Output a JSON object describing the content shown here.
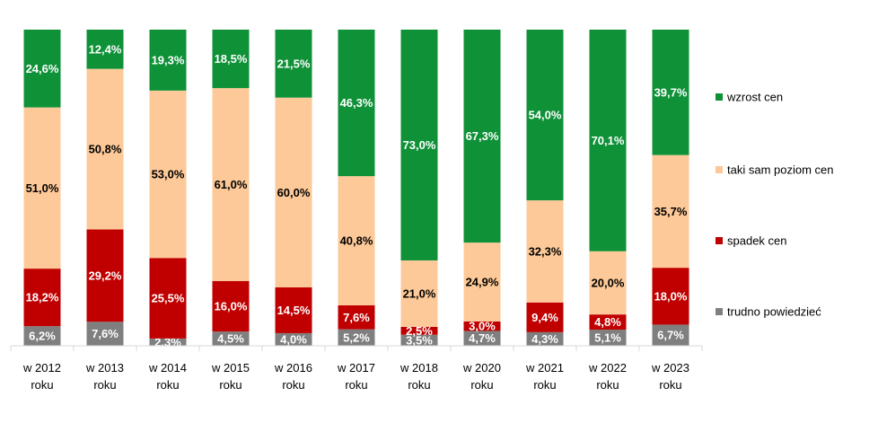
{
  "chart_data": {
    "type": "bar",
    "stacked": true,
    "normalized_percent": true,
    "categories": [
      [
        "w 2012",
        "roku"
      ],
      [
        "w 2013",
        "roku"
      ],
      [
        "w 2014",
        "roku"
      ],
      [
        "w 2015",
        "roku"
      ],
      [
        "w 2016",
        "roku"
      ],
      [
        "w 2017",
        "roku"
      ],
      [
        "w 2018",
        "roku"
      ],
      [
        "w 2020",
        "roku"
      ],
      [
        "w 2021",
        "roku"
      ],
      [
        "w 2022",
        "roku"
      ],
      [
        "w 2023",
        "roku"
      ]
    ],
    "series": [
      {
        "name": "trudno powiedzieć",
        "color": "#7f7f7f",
        "label_color": "#ffffff",
        "values": [
          6.2,
          7.6,
          2.3,
          4.5,
          4.0,
          5.2,
          3.5,
          4.7,
          4.3,
          5.1,
          6.7
        ],
        "labels": [
          "6,2%",
          "7,6%",
          "2,3%",
          "4,5%",
          "4,0%",
          "5,2%",
          "3,5%",
          "4,7%",
          "4,3%",
          "5,1%",
          "6,7%"
        ]
      },
      {
        "name": "spadek cen",
        "color": "#c00000",
        "label_color": "#ffffff",
        "values": [
          18.2,
          29.2,
          25.5,
          16.0,
          14.5,
          7.6,
          2.5,
          3.0,
          9.4,
          4.8,
          18.0
        ],
        "labels": [
          "18,2%",
          "29,2%",
          "25,5%",
          "16,0%",
          "14,5%",
          "7,6%",
          "2,5%",
          "3,0%",
          "9,4%",
          "4,8%",
          "18,0%"
        ]
      },
      {
        "name": "taki sam poziom cen",
        "color": "#fdc998",
        "label_color": "#000000",
        "values": [
          51.0,
          50.8,
          53.0,
          61.0,
          60.0,
          40.8,
          21.0,
          24.9,
          32.3,
          20.0,
          35.7
        ],
        "labels": [
          "51,0%",
          "50,8%",
          "53,0%",
          "61,0%",
          "60,0%",
          "40,8%",
          "21,0%",
          "24,9%",
          "32,3%",
          "20,0%",
          "35,7%"
        ]
      },
      {
        "name": "wzrost cen",
        "color": "#0f9138",
        "label_color": "#ffffff",
        "values": [
          24.6,
          12.4,
          19.3,
          18.5,
          21.5,
          46.3,
          73.0,
          67.3,
          54.0,
          70.1,
          39.7
        ],
        "labels": [
          "24,6%",
          "12,4%",
          "19,3%",
          "18,5%",
          "21,5%",
          "46,3%",
          "73,0%",
          "67,3%",
          "54,0%",
          "70,1%",
          "39,7%"
        ]
      }
    ],
    "legend": {
      "placement": "right",
      "order": [
        "wzrost cen",
        "taki sam poziom cen",
        "spadek cen",
        "trudno powiedzieć"
      ]
    },
    "grid": false,
    "ylim": [
      0,
      100
    ],
    "axis_line_color": "#d9d9d9"
  }
}
